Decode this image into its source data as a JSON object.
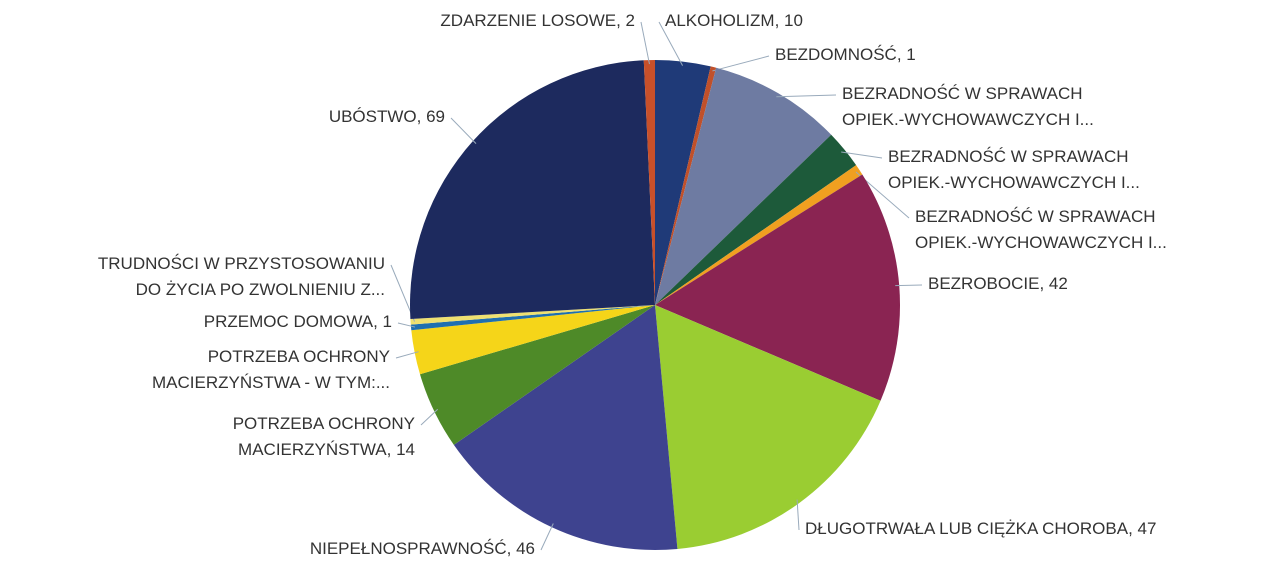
{
  "chart_data": {
    "type": "pie",
    "categories": [
      [
        "ALKOHOLIZM, 10"
      ],
      [
        "BEZDOMNOŚĆ, 1"
      ],
      [
        "BEZRADNOŚĆ W SPRAWACH",
        "OPIEK.-WYCHOWAWCZYCH I..."
      ],
      [
        "BEZRADNOŚĆ W SPRAWACH",
        "OPIEK.-WYCHOWAWCZYCH I..."
      ],
      [
        "BEZRADNOŚĆ W SPRAWACH",
        "OPIEK.-WYCHOWAWCZYCH I..."
      ],
      [
        "BEZROBOCIE, 42"
      ],
      [
        "DŁUGOTRWAŁA LUB CIĘŻKA CHOROBA, 47"
      ],
      [
        "NIEPEŁNOSPRAWNOŚĆ, 46"
      ],
      [
        "POTRZEBA OCHRONY",
        "MACIERZYŃSTWA, 14"
      ],
      [
        "POTRZEBA OCHRONY",
        "MACIERZYŃSTWA - W TYM:..."
      ],
      [
        "PRZEMOC DOMOWA, 1"
      ],
      [
        "TRUDNOŚCI W PRZYSTOSOWANIU",
        "DO ŻYCIA PO ZWOLNIENIU Z..."
      ],
      [
        "UBÓSTWO, 69"
      ],
      [
        "ZDARZENIE LOSOWE, 2"
      ]
    ],
    "values": [
      10,
      1,
      24,
      7,
      2,
      42,
      47,
      46,
      14,
      8,
      1,
      1,
      69,
      2
    ],
    "colors": [
      "#1f3a78",
      "#c0502a",
      "#6e7ba2",
      "#1d5a3a",
      "#f0a020",
      "#8a2452",
      "#9acd32",
      "#3e438f",
      "#4e8a28",
      "#f5d519",
      "#1e6fb0",
      "#eee070",
      "#1d2a5e",
      "#c8502a"
    ]
  }
}
